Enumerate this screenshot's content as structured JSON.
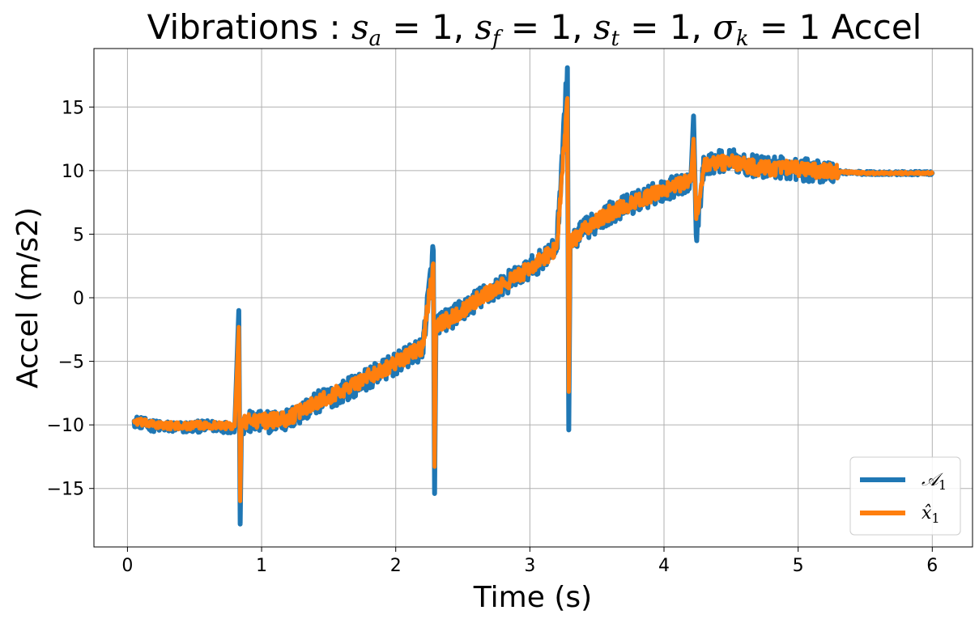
{
  "chart_data": {
    "type": "line",
    "title": "Vibrations : s_a = 1, s_f = 1, s_t = 1, σ_k = 1 Accel",
    "title_parts": {
      "prefix": "Vibrations",
      "colon": " : ",
      "sa": "s",
      "sa_sub": "a",
      "sf": "s",
      "sf_sub": "f",
      "st": "s",
      "st_sub": "t",
      "sigma": "σ",
      "sigma_sub": "k",
      "eq_one": " = 1",
      "comma": ", ",
      "suffix": " Accel"
    },
    "xlabel": "Time (s)",
    "ylabel": "Accel (m/s2)",
    "xlim": [
      -0.25,
      6.3
    ],
    "ylim": [
      -19.6,
      19.6
    ],
    "xticks": [
      0,
      1,
      2,
      3,
      4,
      5,
      6
    ],
    "xtick_labels": [
      "0",
      "1",
      "2",
      "3",
      "4",
      "5",
      "6"
    ],
    "yticks": [
      -15,
      -10,
      -5,
      0,
      5,
      10,
      15
    ],
    "ytick_labels": [
      "−15",
      "−10",
      "−5",
      "0",
      "5",
      "10",
      "15"
    ],
    "grid": true,
    "legend_position": "bottom-right",
    "series": [
      {
        "name": "𝒜₁",
        "legend_main": "𝒜",
        "legend_sub": "1",
        "color": "#1f77b4",
        "x": [
          0.05,
          0.2,
          0.4,
          0.6,
          0.8,
          0.83,
          0.84,
          0.85,
          0.9,
          1.0,
          1.2,
          1.4,
          1.6,
          1.8,
          2.0,
          2.2,
          2.28,
          2.29,
          2.3,
          2.4,
          2.6,
          2.8,
          3.0,
          3.2,
          3.28,
          3.29,
          3.3,
          3.4,
          3.6,
          3.8,
          4.0,
          4.2,
          4.22,
          4.24,
          4.3,
          4.5,
          4.7,
          4.9,
          5.1,
          5.3,
          5.5,
          5.7,
          6.0
        ],
        "y": [
          -9.7,
          -10.1,
          -10.2,
          -10.1,
          -10.2,
          -1.0,
          -17.8,
          -10.0,
          -9.8,
          -9.8,
          -9.6,
          -8.3,
          -7.4,
          -6.3,
          -5.2,
          -4.0,
          3.7,
          -15.4,
          -2.0,
          -1.7,
          -0.2,
          1.0,
          2.3,
          3.9,
          18.1,
          -10.4,
          4.3,
          5.3,
          6.7,
          7.6,
          8.5,
          9.2,
          14.3,
          4.9,
          10.6,
          10.8,
          10.3,
          10.2,
          10.0,
          9.9,
          9.8,
          9.8,
          9.8
        ],
        "noise_amplitude": 0.9
      },
      {
        "name": "x̂₁",
        "legend_main": "x̂",
        "legend_sub": "1",
        "color": "#ff7f0e",
        "x": [
          0.05,
          0.2,
          0.4,
          0.6,
          0.8,
          0.83,
          0.84,
          0.85,
          0.9,
          1.0,
          1.2,
          1.4,
          1.6,
          1.8,
          2.0,
          2.2,
          2.28,
          2.29,
          2.3,
          2.4,
          2.6,
          2.8,
          3.0,
          3.2,
          3.28,
          3.29,
          3.3,
          3.4,
          3.6,
          3.8,
          4.0,
          4.2,
          4.22,
          4.24,
          4.3,
          4.5,
          4.7,
          4.9,
          5.1,
          5.3,
          5.5,
          5.7,
          6.0
        ],
        "y": [
          -9.7,
          -10.0,
          -10.1,
          -10.0,
          -10.1,
          -2.3,
          -16.0,
          -9.9,
          -9.7,
          -9.7,
          -9.5,
          -8.2,
          -7.3,
          -6.2,
          -5.1,
          -3.9,
          2.7,
          -13.3,
          -2.1,
          -1.7,
          -0.2,
          1.0,
          2.3,
          3.9,
          15.7,
          -7.4,
          4.3,
          5.3,
          6.7,
          7.6,
          8.5,
          9.2,
          12.5,
          6.2,
          10.5,
          10.7,
          10.2,
          10.2,
          10.0,
          9.9,
          9.8,
          9.8,
          9.8
        ],
        "noise_amplitude": 0.6
      }
    ]
  }
}
